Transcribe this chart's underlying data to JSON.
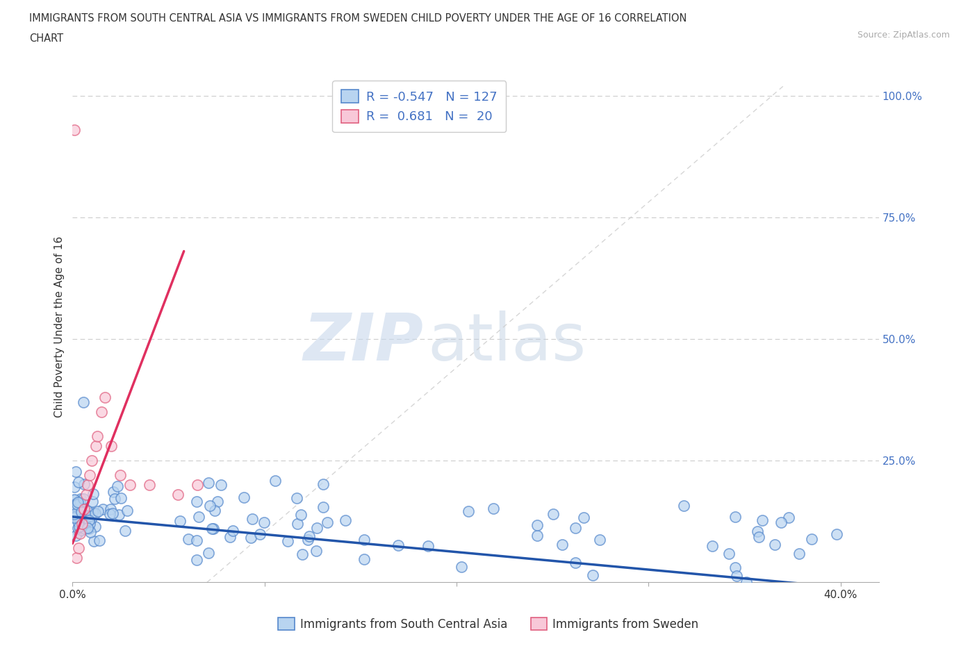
{
  "title_line1": "IMMIGRANTS FROM SOUTH CENTRAL ASIA VS IMMIGRANTS FROM SWEDEN CHILD POVERTY UNDER THE AGE OF 16 CORRELATION",
  "title_line2": "CHART",
  "source": "Source: ZipAtlas.com",
  "ylabel": "Child Poverty Under the Age of 16",
  "xlim": [
    0.0,
    0.42
  ],
  "ylim": [
    0.0,
    1.05
  ],
  "xticks": [
    0.0,
    0.1,
    0.2,
    0.3,
    0.4
  ],
  "xtick_labels": [
    "0.0%",
    "",
    "",
    "",
    "40.0%"
  ],
  "yticks": [
    0.0,
    0.25,
    0.5,
    0.75,
    1.0
  ],
  "ytick_labels_right": [
    "",
    "25.0%",
    "50.0%",
    "75.0%",
    "100.0%"
  ],
  "blue_R": -0.547,
  "blue_N": 127,
  "pink_R": 0.681,
  "pink_N": 20,
  "blue_dot_color": "#b8d4f0",
  "blue_edge_color": "#5588cc",
  "blue_line_color": "#2255aa",
  "pink_dot_color": "#f8c8d8",
  "pink_edge_color": "#e06080",
  "pink_line_color": "#e03060",
  "blue_label": "Immigrants from South Central Asia",
  "pink_label": "Immigrants from Sweden",
  "watermark_zip": "ZIP",
  "watermark_atlas": "atlas",
  "background_color": "#ffffff",
  "grid_color": "#cccccc",
  "ref_line_color": "#cccccc",
  "title_color": "#333333",
  "axis_label_color": "#333333",
  "right_tick_color": "#4472c4",
  "dot_size": 120,
  "dot_linewidth": 1.2,
  "dot_alpha": 0.7
}
